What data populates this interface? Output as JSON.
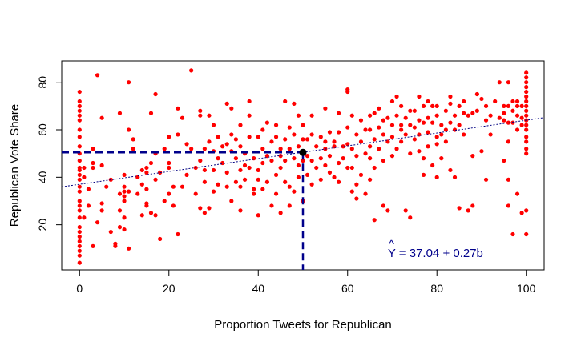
{
  "chart_data": {
    "type": "scatter",
    "title": "",
    "xlabel": "Proportion Tweets for Republican",
    "ylabel": "Republican Vote Share",
    "xlim": [
      -4,
      104
    ],
    "ylim": [
      1,
      89
    ],
    "x_ticks": [
      0,
      20,
      40,
      60,
      80,
      100
    ],
    "y_ticks": [
      20,
      40,
      60,
      80
    ],
    "grid": false,
    "point_color": "#ff0000",
    "regression": {
      "intercept": 37.04,
      "slope": 0.27,
      "color": "#000080",
      "style": "dotted"
    },
    "highlight_point": {
      "x": 50,
      "y": 50.5,
      "color": "#000000"
    },
    "guide_lines_color": "#00008b",
    "annotation": {
      "hat": "^",
      "text": "Y = 37.04 + 0.27b",
      "x": 69,
      "y": 8,
      "color": "#00008b"
    },
    "points": [
      [
        0,
        76
      ],
      [
        0,
        72
      ],
      [
        0,
        70
      ],
      [
        0,
        68
      ],
      [
        0,
        66
      ],
      [
        0,
        64
      ],
      [
        0,
        60
      ],
      [
        0,
        57
      ],
      [
        0,
        53
      ],
      [
        0,
        50
      ],
      [
        0,
        47
      ],
      [
        0,
        44
      ],
      [
        0,
        43
      ],
      [
        0,
        41
      ],
      [
        0,
        39
      ],
      [
        0,
        36
      ],
      [
        0,
        34
      ],
      [
        0,
        30
      ],
      [
        0,
        28
      ],
      [
        0,
        26
      ],
      [
        0,
        23
      ],
      [
        0,
        19
      ],
      [
        0,
        17
      ],
      [
        0,
        15
      ],
      [
        0,
        13
      ],
      [
        0,
        11
      ],
      [
        0,
        9
      ],
      [
        0,
        7
      ],
      [
        0,
        4
      ],
      [
        1,
        44
      ],
      [
        1,
        40
      ],
      [
        1,
        23
      ],
      [
        2,
        35
      ],
      [
        2,
        28
      ],
      [
        3,
        44
      ],
      [
        3,
        52
      ],
      [
        3,
        11
      ],
      [
        3,
        46
      ],
      [
        4,
        21
      ],
      [
        4,
        83
      ],
      [
        5,
        65
      ],
      [
        5,
        45
      ],
      [
        5,
        29
      ],
      [
        5,
        26
      ],
      [
        6,
        36
      ],
      [
        7,
        17
      ],
      [
        7,
        39
      ],
      [
        8,
        11
      ],
      [
        8,
        12
      ],
      [
        9,
        19
      ],
      [
        9,
        26
      ],
      [
        9,
        33
      ],
      [
        9,
        67
      ],
      [
        10,
        18
      ],
      [
        10,
        23
      ],
      [
        10,
        30
      ],
      [
        10,
        32
      ],
      [
        10,
        34
      ],
      [
        10,
        36
      ],
      [
        10,
        41
      ],
      [
        11,
        10
      ],
      [
        11,
        34
      ],
      [
        11,
        60
      ],
      [
        11,
        80
      ],
      [
        12,
        52
      ],
      [
        12,
        56
      ],
      [
        13,
        40
      ],
      [
        13,
        33
      ],
      [
        14,
        37
      ],
      [
        14,
        43
      ],
      [
        14,
        24
      ],
      [
        15,
        42
      ],
      [
        15,
        35
      ],
      [
        15,
        44
      ],
      [
        15,
        28
      ],
      [
        15,
        29
      ],
      [
        16,
        67
      ],
      [
        16,
        25
      ],
      [
        16,
        46
      ],
      [
        17,
        75
      ],
      [
        17,
        24
      ],
      [
        17,
        50
      ],
      [
        17,
        39
      ],
      [
        18,
        14
      ],
      [
        18,
        42
      ],
      [
        19,
        30
      ],
      [
        19,
        52
      ],
      [
        20,
        46
      ],
      [
        20,
        33
      ],
      [
        20,
        44
      ],
      [
        20,
        57
      ],
      [
        21,
        28
      ],
      [
        21,
        36
      ],
      [
        22,
        69
      ],
      [
        22,
        58
      ],
      [
        22,
        16
      ],
      [
        23,
        65
      ],
      [
        23,
        36
      ],
      [
        24,
        54
      ],
      [
        24,
        41
      ],
      [
        25,
        85
      ],
      [
        25,
        52
      ],
      [
        26,
        44
      ],
      [
        26,
        33
      ],
      [
        27,
        27
      ],
      [
        27,
        47
      ],
      [
        27,
        68
      ],
      [
        27,
        66
      ],
      [
        28,
        52
      ],
      [
        28,
        43
      ],
      [
        28,
        38
      ],
      [
        28,
        25
      ],
      [
        29,
        66
      ],
      [
        29,
        55
      ],
      [
        29,
        27
      ],
      [
        30,
        51
      ],
      [
        30,
        34
      ],
      [
        30,
        62
      ],
      [
        30,
        43
      ],
      [
        31,
        57
      ],
      [
        31,
        48
      ],
      [
        31,
        37
      ],
      [
        32,
        53
      ],
      [
        32,
        46
      ],
      [
        33,
        54
      ],
      [
        33,
        42
      ],
      [
        33,
        36
      ],
      [
        33,
        71
      ],
      [
        34,
        58
      ],
      [
        34,
        51
      ],
      [
        34,
        30
      ],
      [
        34,
        69
      ],
      [
        35,
        48
      ],
      [
        35,
        38
      ],
      [
        35,
        56
      ],
      [
        36,
        62
      ],
      [
        36,
        53
      ],
      [
        36,
        43
      ],
      [
        36,
        36
      ],
      [
        36,
        26
      ],
      [
        37,
        50
      ],
      [
        37,
        45
      ],
      [
        37,
        39
      ],
      [
        38,
        57
      ],
      [
        38,
        72
      ],
      [
        38,
        66
      ],
      [
        38,
        44
      ],
      [
        39,
        48
      ],
      [
        39,
        35
      ],
      [
        39,
        33
      ],
      [
        40,
        57
      ],
      [
        40,
        43
      ],
      [
        40,
        24
      ],
      [
        40,
        39
      ],
      [
        41,
        60
      ],
      [
        41,
        52
      ],
      [
        41,
        46
      ],
      [
        41,
        35
      ],
      [
        42,
        63
      ],
      [
        42,
        49
      ],
      [
        42,
        38
      ],
      [
        43,
        55
      ],
      [
        43,
        47
      ],
      [
        43,
        28
      ],
      [
        44,
        62
      ],
      [
        44,
        57
      ],
      [
        44,
        41
      ],
      [
        44,
        33
      ],
      [
        45,
        49
      ],
      [
        45,
        44
      ],
      [
        45,
        52
      ],
      [
        45,
        25
      ],
      [
        46,
        56
      ],
      [
        46,
        47
      ],
      [
        46,
        38
      ],
      [
        46,
        72
      ],
      [
        47,
        61
      ],
      [
        47,
        52
      ],
      [
        47,
        36
      ],
      [
        47,
        28
      ],
      [
        48,
        58
      ],
      [
        48,
        48
      ],
      [
        48,
        71
      ],
      [
        48,
        34
      ],
      [
        49,
        45
      ],
      [
        49,
        53
      ],
      [
        49,
        66
      ],
      [
        49,
        40
      ],
      [
        50,
        62
      ],
      [
        50,
        56
      ],
      [
        50,
        47
      ],
      [
        50,
        30
      ],
      [
        51,
        56
      ],
      [
        51,
        49
      ],
      [
        51,
        41
      ],
      [
        52,
        58
      ],
      [
        52,
        47
      ],
      [
        52,
        37
      ],
      [
        52,
        66
      ],
      [
        53,
        53
      ],
      [
        53,
        44
      ],
      [
        54,
        57
      ],
      [
        54,
        48
      ],
      [
        54,
        39
      ],
      [
        55,
        55
      ],
      [
        55,
        52
      ],
      [
        55,
        45
      ],
      [
        55,
        69
      ],
      [
        56,
        49
      ],
      [
        56,
        42
      ],
      [
        56,
        59
      ],
      [
        57,
        53
      ],
      [
        57,
        40
      ],
      [
        57,
        55
      ],
      [
        58,
        59
      ],
      [
        58,
        46
      ],
      [
        58,
        38
      ],
      [
        58,
        67
      ],
      [
        59,
        53
      ],
      [
        59,
        48
      ],
      [
        60,
        61
      ],
      [
        60,
        54
      ],
      [
        60,
        44
      ],
      [
        60,
        77
      ],
      [
        60,
        76
      ],
      [
        61,
        66
      ],
      [
        61,
        52
      ],
      [
        61,
        44
      ],
      [
        61,
        34
      ],
      [
        62,
        58
      ],
      [
        62,
        49
      ],
      [
        62,
        37
      ],
      [
        62,
        31
      ],
      [
        63,
        64
      ],
      [
        63,
        55
      ],
      [
        63,
        41
      ],
      [
        64,
        50
      ],
      [
        64,
        60
      ],
      [
        64,
        33
      ],
      [
        65,
        66
      ],
      [
        65,
        60
      ],
      [
        65,
        53
      ],
      [
        65,
        48
      ],
      [
        65,
        39
      ],
      [
        66,
        67
      ],
      [
        66,
        56
      ],
      [
        66,
        44
      ],
      [
        66,
        22
      ],
      [
        67,
        61
      ],
      [
        67,
        52
      ],
      [
        67,
        69
      ],
      [
        68,
        64
      ],
      [
        68,
        58
      ],
      [
        68,
        47
      ],
      [
        68,
        28
      ],
      [
        69,
        65
      ],
      [
        69,
        55
      ],
      [
        69,
        26
      ],
      [
        70,
        62
      ],
      [
        70,
        72
      ],
      [
        70,
        57
      ],
      [
        70,
        49
      ],
      [
        71,
        66
      ],
      [
        71,
        74
      ],
      [
        71,
        52
      ],
      [
        72,
        70
      ],
      [
        72,
        60
      ],
      [
        72,
        55
      ],
      [
        72,
        62
      ],
      [
        73,
        65
      ],
      [
        73,
        58
      ],
      [
        73,
        26
      ],
      [
        74,
        62
      ],
      [
        74,
        68
      ],
      [
        74,
        50
      ],
      [
        74,
        23
      ],
      [
        75,
        68
      ],
      [
        75,
        61
      ],
      [
        75,
        56
      ],
      [
        76,
        64
      ],
      [
        76,
        58
      ],
      [
        76,
        74
      ],
      [
        76,
        51
      ],
      [
        77,
        70
      ],
      [
        77,
        63
      ],
      [
        77,
        48
      ],
      [
        77,
        41
      ],
      [
        78,
        65
      ],
      [
        78,
        59
      ],
      [
        78,
        53
      ],
      [
        78,
        72
      ],
      [
        79,
        70
      ],
      [
        79,
        63
      ],
      [
        79,
        45
      ],
      [
        80,
        70
      ],
      [
        80,
        66
      ],
      [
        80,
        57
      ],
      [
        80,
        54
      ],
      [
        80,
        40
      ],
      [
        81,
        62
      ],
      [
        81,
        58
      ],
      [
        81,
        48
      ],
      [
        82,
        68
      ],
      [
        82,
        60
      ],
      [
        82,
        55
      ],
      [
        83,
        74
      ],
      [
        83,
        71
      ],
      [
        83,
        63
      ],
      [
        83,
        43
      ],
      [
        84,
        66
      ],
      [
        84,
        60
      ],
      [
        84,
        40
      ],
      [
        85,
        70
      ],
      [
        85,
        62
      ],
      [
        85,
        27
      ],
      [
        86,
        72
      ],
      [
        86,
        67
      ],
      [
        86,
        58
      ],
      [
        87,
        66
      ],
      [
        87,
        26
      ],
      [
        88,
        67
      ],
      [
        88,
        28
      ],
      [
        88,
        49
      ],
      [
        89,
        75
      ],
      [
        89,
        68
      ],
      [
        90,
        73
      ],
      [
        90,
        51
      ],
      [
        91,
        70
      ],
      [
        91,
        64
      ],
      [
        91,
        39
      ],
      [
        92,
        66
      ],
      [
        92,
        58
      ],
      [
        93,
        72
      ],
      [
        94,
        80
      ],
      [
        94,
        65
      ],
      [
        95,
        70
      ],
      [
        95,
        67
      ],
      [
        95,
        47
      ],
      [
        95,
        64
      ],
      [
        96,
        80
      ],
      [
        96,
        70
      ],
      [
        96,
        63
      ],
      [
        96,
        39
      ],
      [
        96,
        28
      ],
      [
        96,
        55
      ],
      [
        97,
        72
      ],
      [
        97,
        68
      ],
      [
        97,
        63
      ],
      [
        97,
        16
      ],
      [
        98,
        70
      ],
      [
        98,
        66
      ],
      [
        98,
        60
      ],
      [
        98,
        72
      ],
      [
        98,
        33
      ],
      [
        99,
        70
      ],
      [
        99,
        65
      ],
      [
        99,
        62
      ],
      [
        100,
        84
      ],
      [
        100,
        82
      ],
      [
        100,
        80
      ],
      [
        100,
        78
      ],
      [
        100,
        76
      ],
      [
        100,
        74
      ],
      [
        100,
        72
      ],
      [
        100,
        70
      ],
      [
        100,
        68
      ],
      [
        100,
        66
      ],
      [
        100,
        64
      ],
      [
        100,
        62
      ],
      [
        100,
        60
      ],
      [
        100,
        57
      ],
      [
        100,
        55
      ],
      [
        100,
        52
      ],
      [
        100,
        50
      ],
      [
        100,
        26
      ],
      [
        100,
        16
      ],
      [
        99,
        25
      ]
    ]
  }
}
